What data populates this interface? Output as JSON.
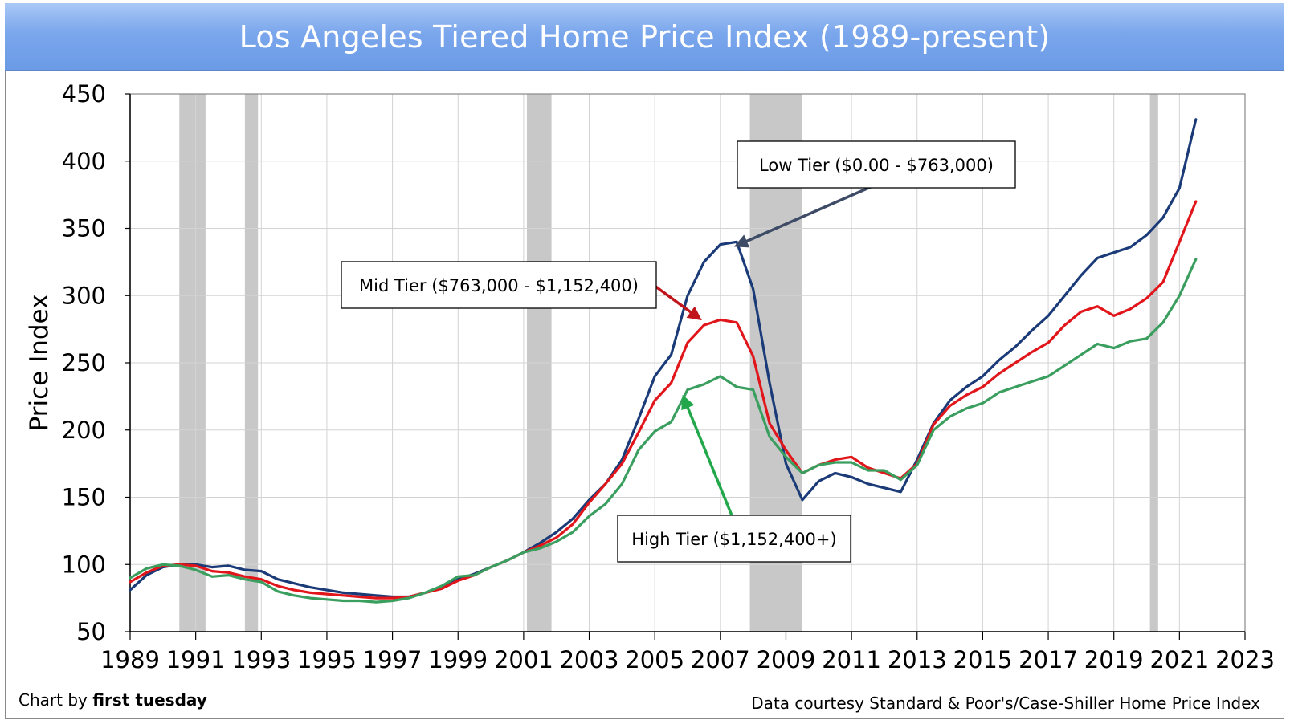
{
  "chart_data": {
    "type": "line",
    "title": "Los Angeles Tiered Home Price Index (1989-present)",
    "ylabel": "Price Index",
    "xlabel": "",
    "xlim": [
      1989,
      2023
    ],
    "ylim": [
      50,
      450
    ],
    "x_ticks": [
      "1989",
      "1991",
      "1993",
      "1995",
      "1997",
      "1999",
      "2001",
      "2003",
      "2005",
      "2007",
      "2009",
      "2011",
      "2013",
      "2015",
      "2017",
      "2019",
      "2021",
      "2023"
    ],
    "y_ticks": [
      "50",
      "100",
      "150",
      "200",
      "250",
      "300",
      "350",
      "400",
      "450"
    ],
    "grid": true,
    "recessions": [
      [
        1990.5,
        1991.3
      ],
      [
        1992.5,
        1992.9
      ],
      [
        2001.1,
        2001.85
      ],
      [
        2007.9,
        2009.5
      ],
      [
        2020.1,
        2020.35
      ]
    ],
    "series": [
      {
        "name": "Low Tier ($0.00 - $763,000)",
        "color": "#1a3a78",
        "x": [
          1989.0,
          1989.5,
          1990.0,
          1990.5,
          1991.0,
          1991.5,
          1992.0,
          1992.5,
          1993.0,
          1993.5,
          1994.0,
          1994.5,
          1995.0,
          1995.5,
          1996.0,
          1996.5,
          1997.0,
          1997.5,
          1998.0,
          1998.5,
          1999.0,
          1999.5,
          2000.0,
          2000.5,
          2001.0,
          2001.5,
          2002.0,
          2002.5,
          2003.0,
          2003.5,
          2004.0,
          2004.5,
          2005.0,
          2005.5,
          2006.0,
          2006.5,
          2007.0,
          2007.5,
          2008.0,
          2008.5,
          2009.0,
          2009.5,
          2010.0,
          2010.5,
          2011.0,
          2011.5,
          2012.0,
          2012.5,
          2013.0,
          2013.5,
          2014.0,
          2014.5,
          2015.0,
          2015.5,
          2016.0,
          2016.5,
          2017.0,
          2017.5,
          2018.0,
          2018.5,
          2019.0,
          2019.5,
          2020.0,
          2020.5,
          2021.0,
          2021.5
        ],
        "values": [
          81,
          92,
          98,
          100,
          100,
          98,
          99,
          96,
          95,
          89,
          86,
          83,
          81,
          79,
          78,
          77,
          76,
          76,
          79,
          83,
          89,
          93,
          98,
          103,
          109,
          116,
          124,
          134,
          148,
          160,
          178,
          208,
          240,
          256,
          300,
          325,
          338,
          340,
          305,
          235,
          175,
          148,
          162,
          168,
          165,
          160,
          157,
          154,
          178,
          205,
          222,
          232,
          240,
          252,
          262,
          274,
          285,
          300,
          315,
          328,
          332,
          336,
          345,
          358,
          380,
          431
        ]
      },
      {
        "name": "Mid Tier ($763,000 - $1,152,400)",
        "color": "#e0161b",
        "x": [
          1989.0,
          1989.5,
          1990.0,
          1990.5,
          1991.0,
          1991.5,
          1992.0,
          1992.5,
          1993.0,
          1993.5,
          1994.0,
          1994.5,
          1995.0,
          1995.5,
          1996.0,
          1996.5,
          1997.0,
          1997.5,
          1998.0,
          1998.5,
          1999.0,
          1999.5,
          2000.0,
          2000.5,
          2001.0,
          2001.5,
          2002.0,
          2002.5,
          2003.0,
          2003.5,
          2004.0,
          2004.5,
          2005.0,
          2005.5,
          2006.0,
          2006.5,
          2007.0,
          2007.5,
          2008.0,
          2008.5,
          2009.0,
          2009.5,
          2010.0,
          2010.5,
          2011.0,
          2011.5,
          2012.0,
          2012.5,
          2013.0,
          2013.5,
          2014.0,
          2014.5,
          2015.0,
          2015.5,
          2016.0,
          2016.5,
          2017.0,
          2017.5,
          2018.0,
          2018.5,
          2019.0,
          2019.5,
          2020.0,
          2020.5,
          2021.0,
          2021.5
        ],
        "values": [
          87,
          94,
          99,
          100,
          99,
          95,
          94,
          91,
          89,
          84,
          81,
          79,
          78,
          77,
          76,
          75,
          75,
          76,
          79,
          82,
          88,
          92,
          98,
          103,
          109,
          114,
          120,
          130,
          146,
          160,
          175,
          198,
          222,
          235,
          265,
          278,
          282,
          280,
          255,
          205,
          185,
          168,
          174,
          178,
          180,
          172,
          168,
          164,
          175,
          204,
          218,
          226,
          232,
          242,
          250,
          258,
          265,
          278,
          288,
          292,
          285,
          290,
          298,
          310,
          340,
          370
        ]
      },
      {
        "name": "High Tier ($1,152,400+)",
        "color": "#3a9e5f",
        "x": [
          1989.0,
          1989.5,
          1990.0,
          1990.5,
          1991.0,
          1991.5,
          1992.0,
          1992.5,
          1993.0,
          1993.5,
          1994.0,
          1994.5,
          1995.0,
          1995.5,
          1996.0,
          1996.5,
          1997.0,
          1997.5,
          1998.0,
          1998.5,
          1999.0,
          1999.5,
          2000.0,
          2000.5,
          2001.0,
          2001.5,
          2002.0,
          2002.5,
          2003.0,
          2003.5,
          2004.0,
          2004.5,
          2005.0,
          2005.5,
          2006.0,
          2006.5,
          2007.0,
          2007.5,
          2008.0,
          2008.5,
          2009.0,
          2009.5,
          2010.0,
          2010.5,
          2011.0,
          2011.5,
          2012.0,
          2012.5,
          2013.0,
          2013.5,
          2014.0,
          2014.5,
          2015.0,
          2015.5,
          2016.0,
          2016.5,
          2017.0,
          2017.5,
          2018.0,
          2018.5,
          2019.0,
          2019.5,
          2020.0,
          2020.5,
          2021.0,
          2021.5
        ],
        "values": [
          90,
          97,
          100,
          99,
          96,
          91,
          92,
          89,
          87,
          80,
          77,
          75,
          74,
          73,
          73,
          72,
          73,
          75,
          79,
          84,
          91,
          92,
          98,
          103,
          109,
          112,
          117,
          124,
          136,
          145,
          160,
          185,
          199,
          206,
          230,
          234,
          240,
          232,
          230,
          195,
          180,
          168,
          174,
          176,
          176,
          170,
          170,
          163,
          174,
          200,
          210,
          216,
          220,
          228,
          232,
          236,
          240,
          248,
          256,
          264,
          261,
          266,
          268,
          280,
          300,
          327
        ]
      }
    ],
    "annotations": [
      {
        "text": "Low Tier ($0.00 - $763,000)",
        "series": 0
      },
      {
        "text": "Mid Tier ($763,000 - $1,152,400)",
        "series": 1
      },
      {
        "text": "High Tier ($1,152,400+)",
        "series": 2
      }
    ]
  },
  "footer": {
    "credit_prefix": "Chart by ",
    "credit_brand": "first tuesday",
    "source": "Data courtesy Standard & Poor's/Case-Shiller Home Price Index"
  }
}
